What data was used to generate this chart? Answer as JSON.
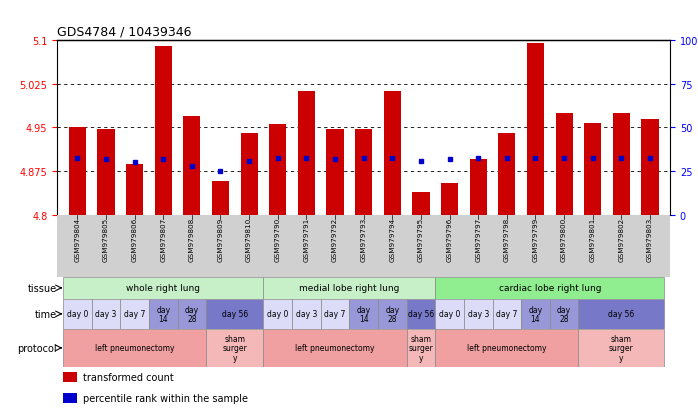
{
  "title": "GDS4784 / 10439346",
  "samples": [
    "GSM979804",
    "GSM979805",
    "GSM979806",
    "GSM979807",
    "GSM979808",
    "GSM979809",
    "GSM979810",
    "GSM979790",
    "GSM979791",
    "GSM979792",
    "GSM979793",
    "GSM979794",
    "GSM979795",
    "GSM979796",
    "GSM979797",
    "GSM979798",
    "GSM979799",
    "GSM979800",
    "GSM979801",
    "GSM979802",
    "GSM979803"
  ],
  "red_values": [
    4.951,
    4.948,
    4.888,
    5.09,
    4.97,
    4.858,
    4.94,
    4.956,
    5.012,
    4.948,
    4.947,
    5.012,
    4.84,
    4.855,
    4.895,
    4.94,
    5.095,
    4.975,
    4.958,
    4.975,
    4.965
  ],
  "blue_values": [
    4.898,
    4.895,
    4.89,
    4.895,
    4.883,
    4.876,
    4.892,
    4.897,
    4.897,
    4.895,
    4.897,
    4.897,
    4.893,
    4.895,
    4.897,
    4.897,
    4.897,
    4.897,
    4.897,
    4.897,
    4.897
  ],
  "ymin": 4.8,
  "ymax": 5.1,
  "yticks_left": [
    4.8,
    4.875,
    4.95,
    5.025,
    5.1
  ],
  "yticks_right": [
    0,
    25,
    50,
    75,
    100
  ],
  "grid_vals": [
    4.875,
    4.95,
    5.025
  ],
  "bar_color": "#cc0000",
  "blue_color": "#0000cc",
  "tissue_data": [
    {
      "label": "whole right lung",
      "start": 0,
      "end": 6,
      "color": "#c8f0c8"
    },
    {
      "label": "medial lobe right lung",
      "start": 7,
      "end": 12,
      "color": "#c8f0c8"
    },
    {
      "label": "cardiac lobe right lung",
      "start": 13,
      "end": 20,
      "color": "#90ee90"
    }
  ],
  "time_data": [
    {
      "label": "day 0",
      "start": 0,
      "end": 0,
      "color": "#dcdcf8"
    },
    {
      "label": "day 3",
      "start": 1,
      "end": 1,
      "color": "#dcdcf8"
    },
    {
      "label": "day 7",
      "start": 2,
      "end": 2,
      "color": "#dcdcf8"
    },
    {
      "label": "day\n14",
      "start": 3,
      "end": 3,
      "color": "#9898d8"
    },
    {
      "label": "day\n28",
      "start": 4,
      "end": 4,
      "color": "#9898d8"
    },
    {
      "label": "day 56",
      "start": 5,
      "end": 6,
      "color": "#7878c8"
    },
    {
      "label": "day 0",
      "start": 7,
      "end": 7,
      "color": "#dcdcf8"
    },
    {
      "label": "day 3",
      "start": 8,
      "end": 8,
      "color": "#dcdcf8"
    },
    {
      "label": "day 7",
      "start": 9,
      "end": 9,
      "color": "#dcdcf8"
    },
    {
      "label": "day\n14",
      "start": 10,
      "end": 10,
      "color": "#9898d8"
    },
    {
      "label": "day\n28",
      "start": 11,
      "end": 11,
      "color": "#9898d8"
    },
    {
      "label": "day 56",
      "start": 12,
      "end": 12,
      "color": "#7878c8"
    },
    {
      "label": "day 0",
      "start": 13,
      "end": 13,
      "color": "#dcdcf8"
    },
    {
      "label": "day 3",
      "start": 14,
      "end": 14,
      "color": "#dcdcf8"
    },
    {
      "label": "day 7",
      "start": 15,
      "end": 15,
      "color": "#dcdcf8"
    },
    {
      "label": "day\n14",
      "start": 16,
      "end": 16,
      "color": "#9898d8"
    },
    {
      "label": "day\n28",
      "start": 17,
      "end": 17,
      "color": "#9898d8"
    },
    {
      "label": "day 56",
      "start": 18,
      "end": 20,
      "color": "#7878c8"
    }
  ],
  "protocol_data": [
    {
      "label": "left pneumonectomy",
      "start": 0,
      "end": 4,
      "color": "#f0a0a0"
    },
    {
      "label": "sham\nsurger\ny",
      "start": 5,
      "end": 6,
      "color": "#f4b8b8"
    },
    {
      "label": "left pneumonectomy",
      "start": 7,
      "end": 11,
      "color": "#f0a0a0"
    },
    {
      "label": "sham\nsurger\ny",
      "start": 12,
      "end": 12,
      "color": "#f4b8b8"
    },
    {
      "label": "left pneumonectomy",
      "start": 13,
      "end": 17,
      "color": "#f0a0a0"
    },
    {
      "label": "sham\nsurger\ny",
      "start": 18,
      "end": 20,
      "color": "#f4b8b8"
    }
  ],
  "legend_items": [
    {
      "label": "transformed count",
      "color": "#cc0000"
    },
    {
      "label": "percentile rank within the sample",
      "color": "#0000cc"
    }
  ],
  "row_labels": [
    "tissue",
    "time",
    "protocol"
  ]
}
